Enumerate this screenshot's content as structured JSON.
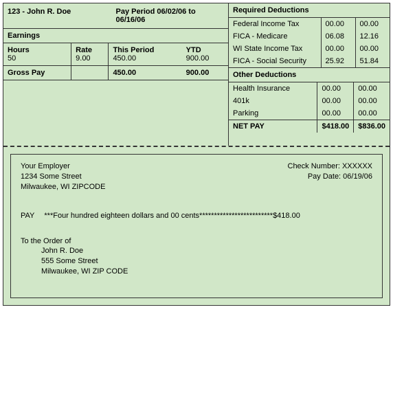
{
  "header": {
    "employee": "123 - John R. Doe",
    "pay_period": "Pay Period 06/02/06 to 06/16/06"
  },
  "earnings": {
    "title": "Earnings",
    "cols": {
      "hours": "Hours",
      "rate": "Rate",
      "this_period": "This Period",
      "ytd": "YTD"
    },
    "row": {
      "hours": "50",
      "rate": "9.00",
      "this_period": "450.00",
      "ytd": "900.00"
    },
    "gross_label": "Gross Pay",
    "gross_this": "450.00",
    "gross_ytd": "900.00"
  },
  "required": {
    "title": "Required Deductions",
    "rows": [
      {
        "label": "Federal Income Tax",
        "this": "00.00",
        "ytd": "00.00"
      },
      {
        "label": "FICA - Medicare",
        "this": "06.08",
        "ytd": "12.16"
      },
      {
        "label": "WI State Income Tax",
        "this": "00.00",
        "ytd": "00.00"
      },
      {
        "label": "FICA - Social Security",
        "this": "25.92",
        "ytd": "51.84"
      }
    ]
  },
  "other": {
    "title": "Other Deductions",
    "rows": [
      {
        "label": "Health Insurance",
        "this": "00.00",
        "ytd": "00.00"
      },
      {
        "label": "401k",
        "this": "00.00",
        "ytd": "00.00"
      },
      {
        "label": "Parking",
        "this": "00.00",
        "ytd": "00.00"
      }
    ]
  },
  "net": {
    "label": "NET PAY",
    "this": "$418.00",
    "ytd": "$836.00"
  },
  "check": {
    "employer_name": "Your Employer",
    "employer_addr1": "1234 Some Street",
    "employer_addr2": "Milwaukee, WI ZIPCODE",
    "check_number_label": "Check Number: XXXXXX",
    "pay_date_label": "Pay Date: 06/19/06",
    "pay_label": "PAY",
    "pay_words": "***Four hundred eighteen dollars and 00 cents*************************$418.00",
    "orderof_label": "To the Order of",
    "payee_name": "John R. Doe",
    "payee_addr1": "555 Some Street",
    "payee_addr2": "Milwaukee, WI ZIP CODE"
  }
}
